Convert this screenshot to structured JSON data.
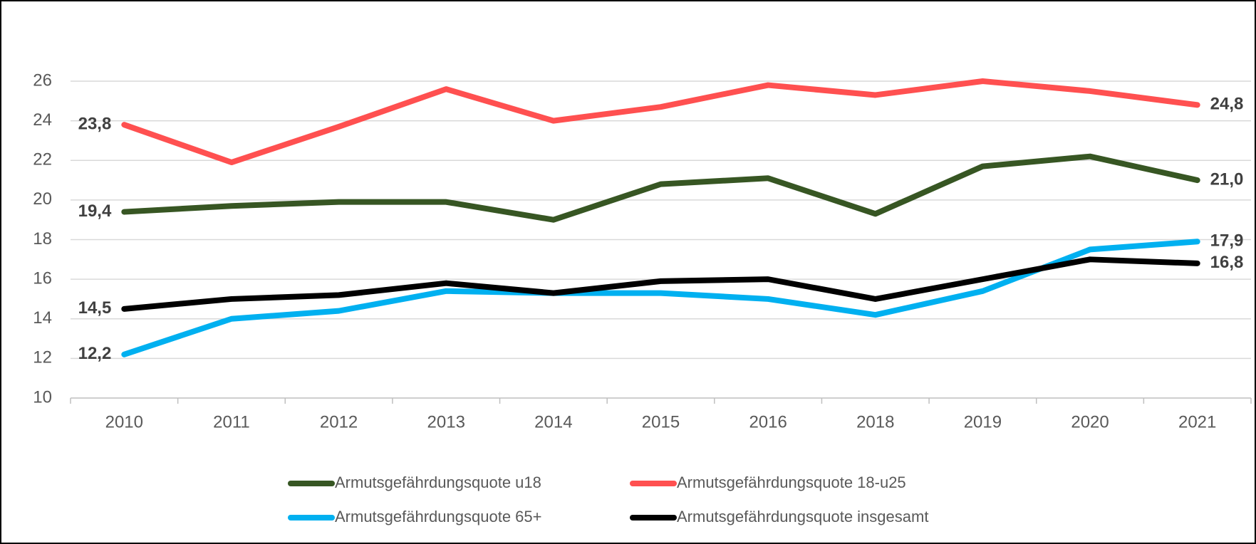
{
  "chart_data": {
    "type": "line",
    "categories": [
      "2010",
      "2011",
      "2012",
      "2013",
      "2014",
      "2015",
      "2016",
      "2018",
      "2019",
      "2020",
      "2021"
    ],
    "series": [
      {
        "name": "Armutsgefährdungsquote u18",
        "color": "#375623",
        "values": [
          19.4,
          19.7,
          19.9,
          19.9,
          19.0,
          20.8,
          21.1,
          19.3,
          21.7,
          22.2,
          21.0
        ],
        "value_labels": [
          "19,4",
          null,
          null,
          null,
          null,
          null,
          null,
          null,
          null,
          null,
          "21,0"
        ]
      },
      {
        "name": "Armutsgefährdungsquote 18-u25",
        "color": "#ff5050",
        "values": [
          23.8,
          21.9,
          23.7,
          25.6,
          24.0,
          24.7,
          25.8,
          25.3,
          26.0,
          25.5,
          24.8
        ],
        "value_labels": [
          "23,8",
          null,
          null,
          null,
          null,
          null,
          null,
          null,
          null,
          null,
          "24,8"
        ]
      },
      {
        "name": "Armutsgefährdungsquote 65+",
        "color": "#00b0f0",
        "values": [
          12.2,
          14.0,
          14.4,
          15.4,
          15.3,
          15.3,
          15.0,
          14.2,
          15.4,
          17.5,
          17.9
        ],
        "value_labels": [
          "12,2",
          null,
          null,
          null,
          null,
          null,
          null,
          null,
          null,
          null,
          "17,9"
        ]
      },
      {
        "name": "Armutsgefährdungsquote insgesamt",
        "color": "#000000",
        "values": [
          14.5,
          15.0,
          15.2,
          15.8,
          15.3,
          15.9,
          16.0,
          15.0,
          16.0,
          17.0,
          16.8
        ],
        "value_labels": [
          "14,5",
          null,
          null,
          null,
          null,
          null,
          null,
          null,
          null,
          null,
          "16,8"
        ]
      }
    ],
    "ylim": [
      10,
      26
    ],
    "yticks": [
      10,
      12,
      14,
      16,
      18,
      20,
      22,
      24,
      26
    ],
    "grid": true
  }
}
